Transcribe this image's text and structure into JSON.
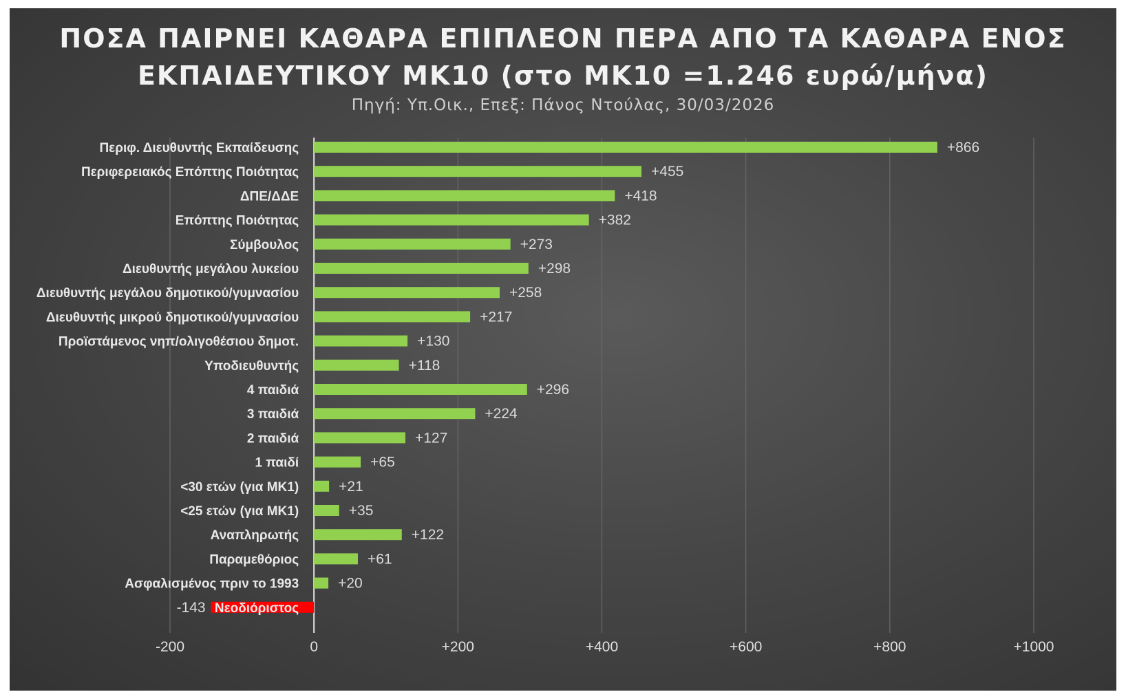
{
  "chart_data": {
    "type": "bar",
    "orientation": "horizontal",
    "title_lines": [
      "ΠΟΣΑ ΠΑΙΡΝΕΙ ΚΑΘΑΡΑ ΕΠΙΠΛΕΟΝ ΠΕΡΑ ΑΠΟ ΤΑ ΚΑΘΑΡΑ ΕΝΟΣ",
      "ΕΚΠΑΙΔΕΥΤΙΚΟΥ ΜΚ10 (στο ΜΚ10 =1.246 ευρώ/μήνα)"
    ],
    "subtitle": "Πηγή: Υπ.Οικ., Επεξ: Πάνος Ντούλας, 30/03/2026",
    "categories": [
      "Περιφ. Διευθυντής Εκπαίδευσης",
      "Περιφερειακός Επόπτης Ποιότητας",
      "ΔΠΕ/ΔΔΕ",
      "Επόπτης Ποιότητας",
      "Σύμβουλος",
      "Διευθυντής μεγάλου λυκείου",
      "Διευθυντής μεγάλου δημοτικού/γυμνασίου",
      "Διευθυντής μικρού δημοτικού/γυμνασίου",
      "Προϊστάμενος νηπ/ολιγοθέσιου δημοτ.",
      "Υποδιευθυντής",
      "4 παιδιά",
      "3 παιδιά",
      "2 παιδιά",
      "1 παιδί",
      "<30 ετών (για ΜΚ1)",
      "<25 ετών (για ΜΚ1)",
      "Αναπληρωτής",
      "Παραμεθόριος",
      "Ασφαλισμένος πριν το 1993",
      "Νεοδιόριστος"
    ],
    "values": [
      866,
      455,
      418,
      382,
      273,
      298,
      258,
      217,
      130,
      118,
      296,
      224,
      127,
      65,
      21,
      35,
      122,
      61,
      20,
      -143
    ],
    "value_labels": [
      "+866",
      "+455",
      "+418",
      "+382",
      "+273",
      "+298",
      "+258",
      "+217",
      "+130",
      "+118",
      "+296",
      "+224",
      "+127",
      "+65",
      "+21",
      "+35",
      "+122",
      "+61",
      "+20",
      "-143"
    ],
    "xlim": [
      -200,
      1000
    ],
    "xticks": [
      -200,
      0,
      200,
      400,
      600,
      800,
      1000
    ],
    "xtick_labels": [
      "-200",
      "0",
      "+200",
      "+400",
      "+600",
      "+800",
      "+1000"
    ],
    "grid": true,
    "legend": "none",
    "colors": {
      "positive_bar": "#92d050",
      "negative_bar": "#ff0000",
      "background": "#474747",
      "gridline": "#6a6a6a",
      "zero_axis": "#e0e0e0"
    }
  }
}
